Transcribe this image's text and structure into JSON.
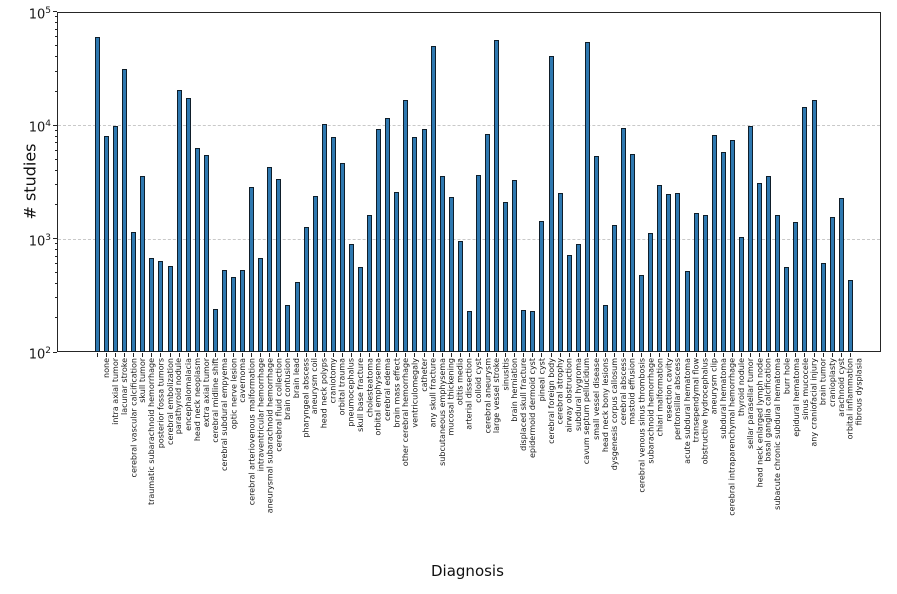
{
  "chart_data": {
    "type": "bar",
    "title": "",
    "xlabel": "Diagnosis",
    "ylabel": "# studies",
    "y_scale": "log",
    "ylim": [
      100,
      100000
    ],
    "y_tick_exponents": [
      2,
      3,
      4,
      5
    ],
    "grid": "dashed horizontal gridlines at decades",
    "legend_position": "none",
    "bar_color": "#2e78b0",
    "bar_edge_color": "#0f1e2a",
    "categories": [
      "none",
      "intra axial tumor",
      "lacunar stroke",
      "cerebral vascular calcification",
      "skull tumor",
      "traumatic subarachnoid hemorrhage",
      "posterior fossa tumors",
      "cerebral embolization",
      "parathyroid nodule",
      "encephalomalacia",
      "head neck neoplasm",
      "extra axial tumor",
      "cerebral midline shift",
      "cerebral subdural empyema",
      "optic nerve lesion",
      "cavernoma",
      "cerebral arteriovenous malformation",
      "intraventricular hemorrhage",
      "aneurysmal subarachnoid hemorrhage",
      "cerebral fluid collection",
      "brain contusion",
      "brain lead",
      "pharyngeal abscess",
      "aneurysm coil",
      "head neck polyps",
      "craniotomy",
      "orbital trauma",
      "pneumocephalus",
      "skull base fracture",
      "cholesteatoma",
      "orbital emphysema",
      "cerebral edema",
      "brain mass effect",
      "other cerebral hemorrhage",
      "ventriculomegaly",
      "catheter",
      "any skull fracture",
      "subcutaneous emphysema",
      "mucosal thickening",
      "otitis media",
      "arterial dissection",
      "colloid cyst",
      "cerebral aneurysm",
      "large vessel stroke",
      "sinusitis",
      "brain herniation",
      "displaced skull fracture",
      "epidermoid dermoid cyst",
      "pineal cyst",
      "cerebral foreign body",
      "cerebral atrophy",
      "airway obstruction",
      "subdural hygroma",
      "cavum septum pellucidum",
      "small vessel disease",
      "head neck bony lesions",
      "dysgenesis corpus callosum",
      "cerebral abscess",
      "mastoid effusion",
      "cerebral venous sinus thrombosis",
      "subarachnoid hemorrhage",
      "chiari malformation",
      "resection cavity",
      "peritonsillar abscess",
      "acute subdural hematoma",
      "transependymal flow",
      "obstructive hydrocephalus",
      "aneurysm clip",
      "subdural hematoma",
      "cerebral intraparenchymal hemorrhage",
      "thyroid nodule",
      "sellar parasellar tumor",
      "head neck enlarged lymph node",
      "basal ganglia calcification",
      "subacute chronic subdural hematoma",
      "burr hole",
      "epidural hematoma",
      "sinus mucocele",
      "any craniofacial injury",
      "brain tumor",
      "cranioplasty",
      "arachnoid cyst",
      "orbital inflammation",
      "fibrous dysplasia"
    ],
    "values": [
      60000,
      8000,
      9900,
      31500,
      1150,
      3580,
      680,
      640,
      575,
      20500,
      17200,
      6350,
      5500,
      240,
      530,
      460,
      525,
      2870,
      675,
      4250,
      3350,
      260,
      415,
      1270,
      2360,
      10200,
      7900,
      4650,
      890,
      560,
      1610,
      9300,
      11650,
      2550,
      16600,
      7900,
      9250,
      50000,
      3600,
      2330,
      950,
      230,
      3630,
      8400,
      56000,
      2100,
      3320,
      233,
      230,
      1430,
      41000,
      2500,
      710,
      890,
      54000,
      5400,
      260,
      1330,
      9400,
      5600,
      480,
      1120,
      2950,
      2470,
      2540,
      520,
      1680,
      1600,
      8180,
      5820,
      7380,
      1035,
      9820,
      3100,
      3580,
      1610,
      565,
      1400,
      14500,
      16650,
      605,
      1550,
      2260,
      430
    ]
  }
}
